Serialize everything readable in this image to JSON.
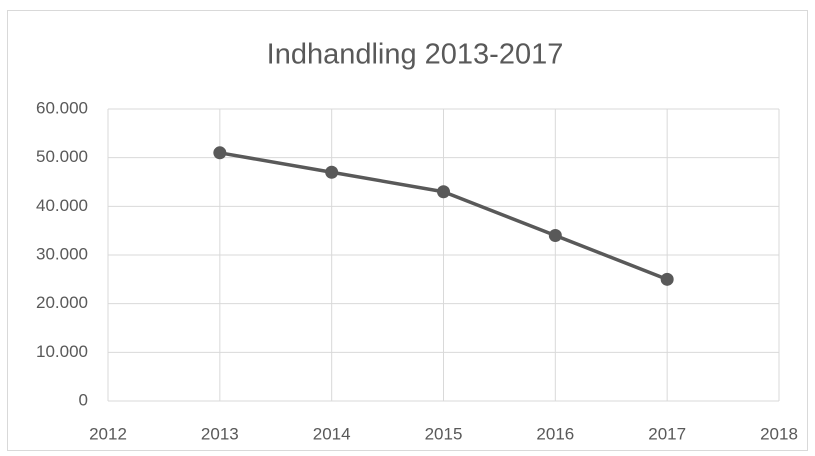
{
  "chart_data": {
    "type": "line",
    "title": "Indhandling 2013-2017",
    "x": [
      2013,
      2014,
      2015,
      2016,
      2017
    ],
    "values": [
      51000,
      47000,
      43000,
      34000,
      25000
    ],
    "color": "#595959",
    "xlim": [
      2012,
      2018
    ],
    "xticks": [
      2012,
      2013,
      2014,
      2015,
      2016,
      2017,
      2018
    ],
    "ylim": [
      0,
      60000
    ],
    "yticks": [
      0,
      {
        "value": 10000,
        "label": "10.000"
      },
      {
        "value": 20000,
        "label": "20.000"
      },
      {
        "value": 30000,
        "label": "30.000"
      },
      {
        "value": 40000,
        "label": "40.000"
      },
      {
        "value": 50000,
        "label": "50.000"
      },
      {
        "value": 60000,
        "label": "60.000"
      }
    ],
    "grid": true
  }
}
